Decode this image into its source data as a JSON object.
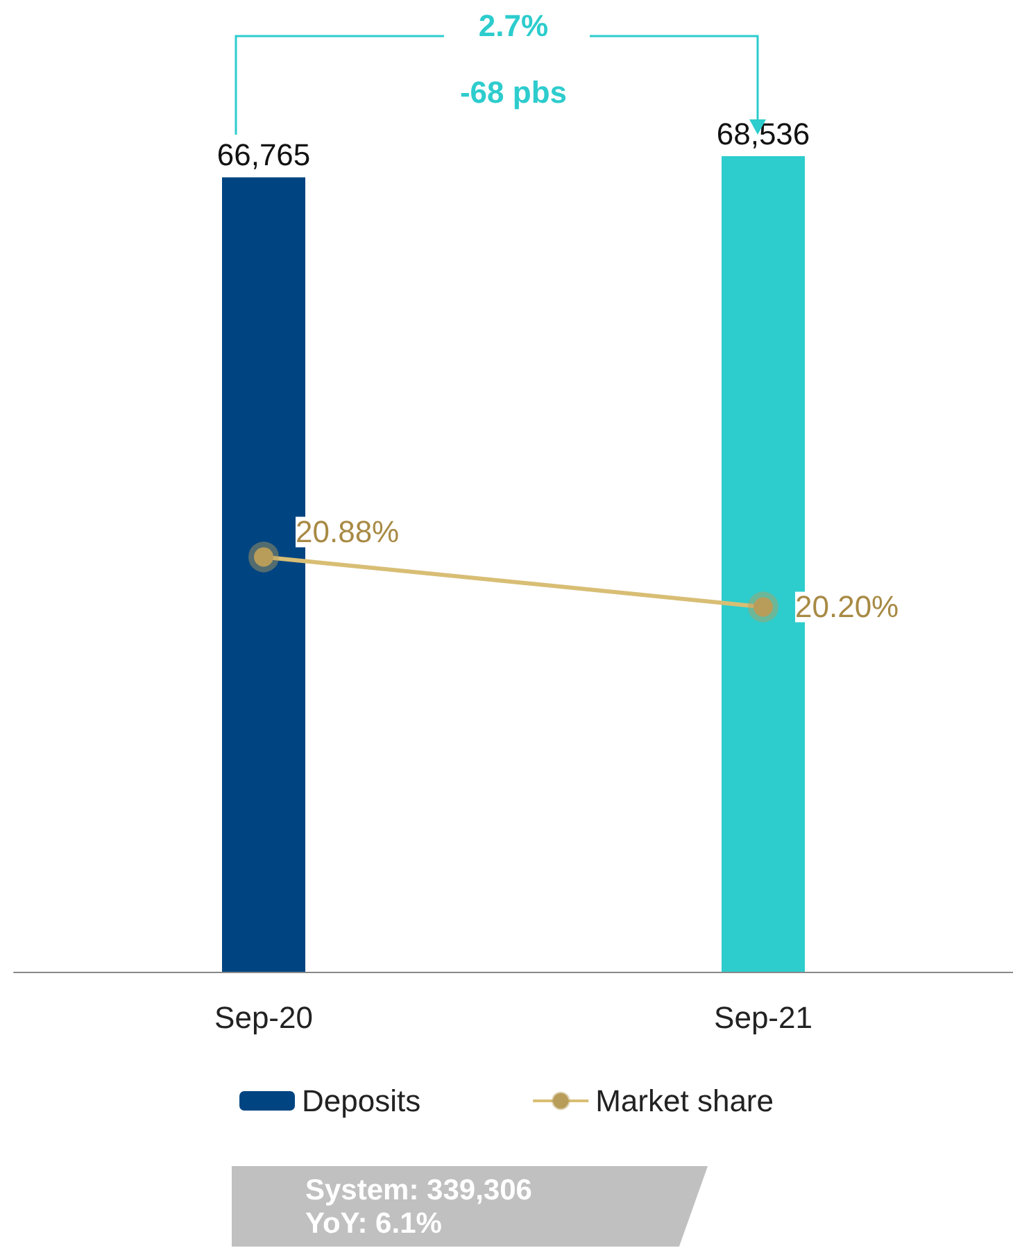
{
  "chart_data": {
    "type": "bar",
    "categories": [
      "Sep-20",
      "Sep-21"
    ],
    "series": [
      {
        "name": "Deposits",
        "colors": [
          "#004481",
          "#2dcccd"
        ],
        "values": [
          66765,
          68536
        ],
        "value_labels": [
          "66,765",
          "68,536"
        ]
      },
      {
        "name": "Market share",
        "type": "line",
        "axis": "y2",
        "color": "#d8be75",
        "values": [
          20.88,
          20.2
        ],
        "value_labels": [
          "20.88%",
          "20.20%"
        ]
      }
    ],
    "tick_labels": "x",
    "legend": "bottom",
    "marker": "circle",
    "annotations": [
      "2.7%",
      "-68 pbs",
      "System: 339,306",
      "YoY: 6.1%"
    ]
  }
}
